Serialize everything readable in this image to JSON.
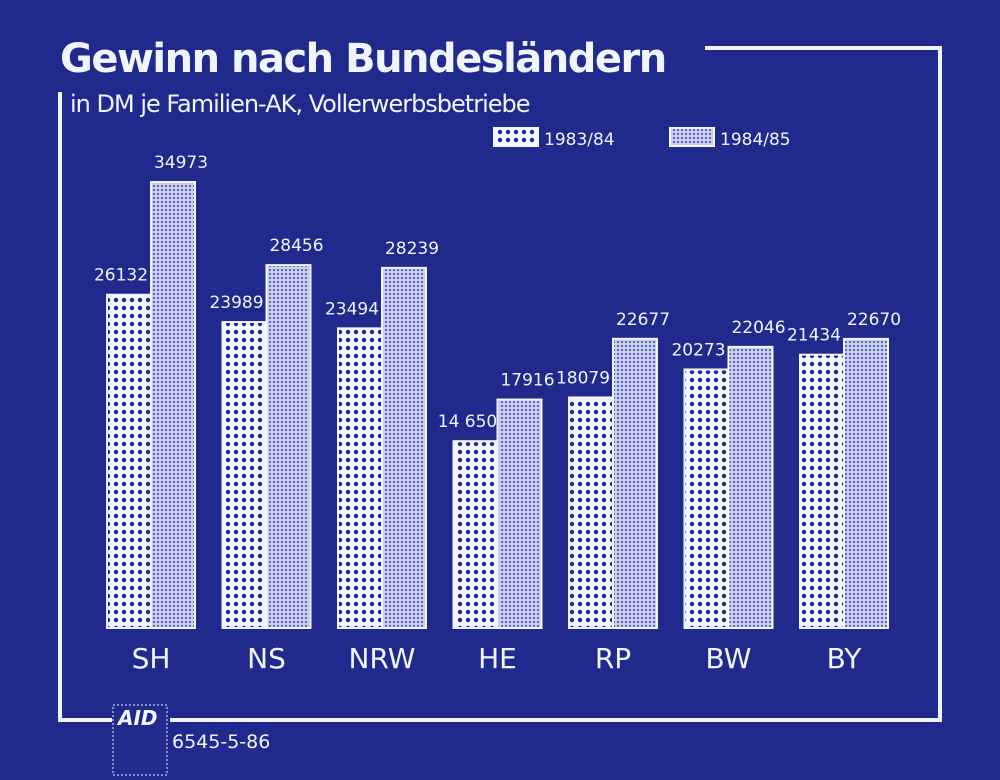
{
  "chart_data": {
    "type": "bar",
    "title": "Gewinn nach Bundesländern",
    "subtitle": "in DM je Familien-AK, Vollerwerbsbetriebe",
    "categories": [
      "SH",
      "NS",
      "NRW",
      "HE",
      "RP",
      "BW",
      "BY"
    ],
    "series": [
      {
        "name": "1983/84",
        "values": [
          26132,
          23989,
          23494,
          14650,
          18079,
          20273,
          21434
        ],
        "value_labels": [
          "26132",
          "23989",
          "23494",
          "14 650",
          "18079",
          "20273",
          "21434"
        ]
      },
      {
        "name": "1984/85",
        "values": [
          34973,
          28456,
          28239,
          17916,
          22677,
          22046,
          22670
        ],
        "value_labels": [
          "34973",
          "28456",
          "28239",
          "17916",
          "22677",
          "22046",
          "22670"
        ]
      }
    ],
    "xlabel": "",
    "ylabel": "",
    "ylim": [
      0,
      35000
    ],
    "grid": false,
    "legend": "top-right"
  },
  "footer": {
    "logo": "AID",
    "code": "6545-5-86"
  },
  "colors": {
    "background": "#1f2a8c",
    "foreground": "#f2f4ff"
  }
}
